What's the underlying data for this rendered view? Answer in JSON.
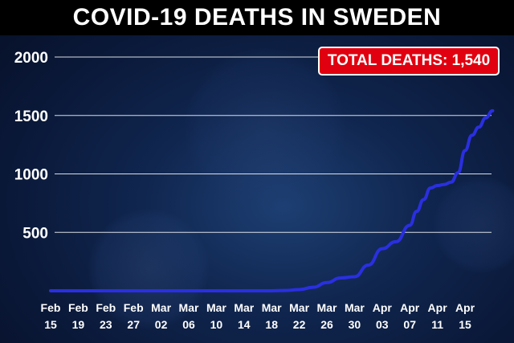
{
  "title": "COVID-19 DEATHS IN SWEDEN",
  "badge": {
    "label": "TOTAL DEATHS: 1,540"
  },
  "colors": {
    "line": "#2a2fe0",
    "badge": "#e0000f",
    "background": "#0f2450",
    "title_bar": "#000000"
  },
  "chart_data": {
    "type": "line",
    "title": "COVID-19 DEATHS IN SWEDEN",
    "xlabel": "",
    "ylabel": "",
    "ylim": [
      0,
      2000
    ],
    "yticks": [
      "500",
      "1000",
      "1500",
      "2000"
    ],
    "x_ticks": [
      {
        "top": "Feb",
        "bottom": "15",
        "day": 0
      },
      {
        "top": "Feb",
        "bottom": "19",
        "day": 4
      },
      {
        "top": "Feb",
        "bottom": "23",
        "day": 8
      },
      {
        "top": "Feb",
        "bottom": "27",
        "day": 12
      },
      {
        "top": "Mar",
        "bottom": "02",
        "day": 16
      },
      {
        "top": "Mar",
        "bottom": "06",
        "day": 20
      },
      {
        "top": "Mar",
        "bottom": "10",
        "day": 24
      },
      {
        "top": "Mar",
        "bottom": "14",
        "day": 28
      },
      {
        "top": "Mar",
        "bottom": "18",
        "day": 32
      },
      {
        "top": "Mar",
        "bottom": "22",
        "day": 36
      },
      {
        "top": "Mar",
        "bottom": "26",
        "day": 40
      },
      {
        "top": "Mar",
        "bottom": "30",
        "day": 44
      },
      {
        "top": "Apr",
        "bottom": "03",
        "day": 48
      },
      {
        "top": "Apr",
        "bottom": "07",
        "day": 52
      },
      {
        "top": "Apr",
        "bottom": "11",
        "day": 56
      },
      {
        "top": "Apr",
        "bottom": "15",
        "day": 60
      }
    ],
    "grid": true,
    "legend": "none",
    "series": [
      {
        "x": [
          "Feb 15",
          "Mar 10",
          "Mar 18",
          "Mar 20",
          "Mar 22",
          "Mar 24",
          "Mar 26",
          "Mar 28",
          "Mar 30",
          "Apr 01",
          "Apr 03",
          "Apr 05",
          "Apr 07",
          "Apr 08",
          "Apr 09",
          "Apr 10",
          "Apr 11",
          "Apr 12",
          "Apr 13",
          "Apr 14",
          "Apr 15",
          "Apr 16",
          "Apr 17",
          "Apr 18",
          "Apr 19"
        ],
        "values": [
          0,
          0,
          0,
          3,
          10,
          30,
          70,
          110,
          120,
          220,
          360,
          420,
          560,
          680,
          780,
          880,
          900,
          910,
          930,
          1010,
          1200,
          1330,
          1400,
          1480,
          1540
        ]
      }
    ]
  }
}
